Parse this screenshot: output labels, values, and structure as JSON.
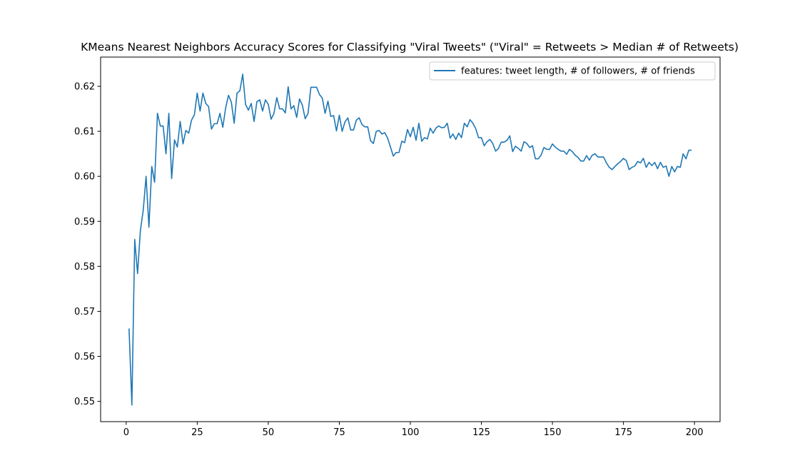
{
  "chart_data": {
    "type": "line",
    "title": "KMeans Nearest Neighbors Accuracy Scores for Classifying \"Viral Tweets\" (\"Viral\" = Retweets > Median # of Retweets)",
    "xlabel": "",
    "ylabel": "",
    "xlim": [
      -9,
      209
    ],
    "ylim": [
      0.5455,
      0.6265
    ],
    "xticks": [
      0,
      25,
      50,
      75,
      100,
      125,
      150,
      175,
      200
    ],
    "yticks": [
      0.55,
      0.56,
      0.57,
      0.58,
      0.59,
      0.6,
      0.61,
      0.62
    ],
    "grid": false,
    "legend_position": "top-right",
    "series": [
      {
        "name": "features: tweet length, # of followers, # of friends",
        "color": "#1f77b4",
        "x": [
          1,
          2,
          3,
          4,
          5,
          6,
          7,
          8,
          9,
          10,
          11,
          12,
          13,
          14,
          15,
          16,
          17,
          18,
          19,
          20,
          21,
          22,
          23,
          24,
          25,
          26,
          27,
          28,
          29,
          30,
          31,
          32,
          33,
          34,
          35,
          36,
          37,
          38,
          39,
          40,
          41,
          42,
          43,
          44,
          45,
          46,
          47,
          48,
          49,
          50,
          51,
          52,
          53,
          54,
          55,
          56,
          57,
          58,
          59,
          60,
          61,
          62,
          63,
          64,
          65,
          66,
          67,
          68,
          69,
          70,
          71,
          72,
          73,
          74,
          75,
          76,
          77,
          78,
          79,
          80,
          81,
          82,
          83,
          84,
          85,
          86,
          87,
          88,
          89,
          90,
          91,
          92,
          93,
          94,
          95,
          96,
          97,
          98,
          99,
          100,
          101,
          102,
          103,
          104,
          105,
          106,
          107,
          108,
          109,
          110,
          111,
          112,
          113,
          114,
          115,
          116,
          117,
          118,
          119,
          120,
          121,
          122,
          123,
          124,
          125,
          126,
          127,
          128,
          129,
          130,
          131,
          132,
          133,
          134,
          135,
          136,
          137,
          138,
          139,
          140,
          141,
          142,
          143,
          144,
          145,
          146,
          147,
          148,
          149,
          150,
          151,
          152,
          153,
          154,
          155,
          156,
          157,
          158,
          159,
          160,
          161,
          162,
          163,
          164,
          165,
          166,
          167,
          168,
          169,
          170,
          171,
          172,
          173,
          174,
          175,
          176,
          177,
          178,
          179,
          180,
          181,
          182,
          183,
          184,
          185,
          186,
          187,
          188,
          189,
          190,
          191,
          192,
          193,
          194,
          195,
          196,
          197,
          198,
          199
        ],
        "y": [
          0.5662,
          0.5492,
          0.586,
          0.5784,
          0.588,
          0.5925,
          0.6,
          0.5887,
          0.6022,
          0.5987,
          0.614,
          0.6112,
          0.6112,
          0.605,
          0.614,
          0.5995,
          0.6081,
          0.6065,
          0.6122,
          0.6072,
          0.6102,
          0.6096,
          0.6125,
          0.6137,
          0.6185,
          0.6145,
          0.6185,
          0.6162,
          0.6155,
          0.6105,
          0.6117,
          0.6117,
          0.614,
          0.6109,
          0.6152,
          0.618,
          0.6165,
          0.6118,
          0.6185,
          0.619,
          0.6227,
          0.616,
          0.6147,
          0.6162,
          0.6122,
          0.6166,
          0.617,
          0.6145,
          0.617,
          0.616,
          0.6127,
          0.614,
          0.6175,
          0.615,
          0.615,
          0.6141,
          0.6199,
          0.615,
          0.6157,
          0.6131,
          0.6172,
          0.6158,
          0.6128,
          0.614,
          0.6198,
          0.6198,
          0.6198,
          0.6182,
          0.6174,
          0.614,
          0.6167,
          0.6133,
          0.6135,
          0.6101,
          0.6136,
          0.61,
          0.6121,
          0.613,
          0.6103,
          0.6103,
          0.6125,
          0.613,
          0.6115,
          0.611,
          0.611,
          0.6079,
          0.6073,
          0.61,
          0.6102,
          0.6094,
          0.6097,
          0.6085,
          0.6065,
          0.6045,
          0.6053,
          0.6053,
          0.6078,
          0.6075,
          0.6104,
          0.6088,
          0.6109,
          0.608,
          0.6118,
          0.6078,
          0.6086,
          0.6083,
          0.6107,
          0.6096,
          0.6107,
          0.6112,
          0.6108,
          0.6109,
          0.6118,
          0.6085,
          0.6094,
          0.6082,
          0.6096,
          0.6086,
          0.6118,
          0.611,
          0.6126,
          0.6118,
          0.6106,
          0.6086,
          0.6086,
          0.6068,
          0.6077,
          0.6082,
          0.6073,
          0.6056,
          0.6062,
          0.6076,
          0.6076,
          0.608,
          0.609,
          0.6055,
          0.6067,
          0.6062,
          0.6056,
          0.6077,
          0.6073,
          0.6064,
          0.6068,
          0.6039,
          0.6039,
          0.6047,
          0.6064,
          0.606,
          0.606,
          0.6072,
          0.6065,
          0.606,
          0.6056,
          0.6056,
          0.6049,
          0.606,
          0.6055,
          0.6047,
          0.6042,
          0.6034,
          0.6034,
          0.6046,
          0.6036,
          0.6047,
          0.605,
          0.6043,
          0.6043,
          0.6043,
          0.603,
          0.602,
          0.6015,
          0.6022,
          0.6028,
          0.6033,
          0.604,
          0.6035,
          0.6015,
          0.602,
          0.6023,
          0.6033,
          0.603,
          0.604,
          0.602,
          0.6031,
          0.6024,
          0.6031,
          0.6017,
          0.6031,
          0.602,
          0.6023,
          0.6,
          0.6022,
          0.601,
          0.6022,
          0.602,
          0.605,
          0.6039,
          0.6058,
          0.6058
        ]
      }
    ]
  }
}
